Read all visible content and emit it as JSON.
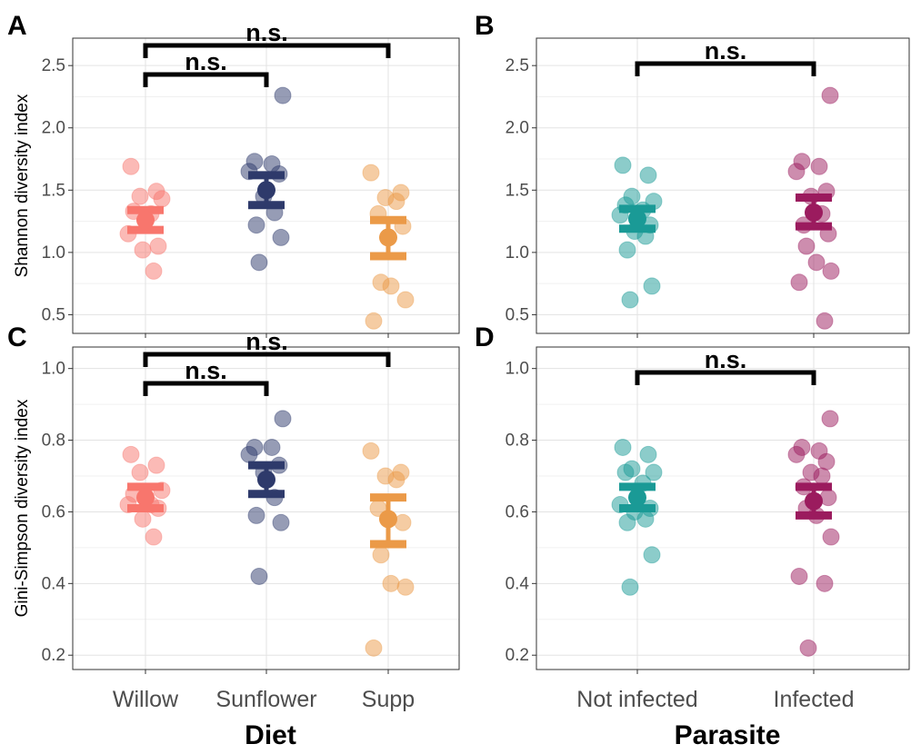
{
  "figure": {
    "panels": [
      "A",
      "B",
      "C",
      "D"
    ]
  },
  "chart_data": [
    {
      "panel": "A",
      "type": "scatter",
      "subtype": "jitter-with-mean-se",
      "categories": [
        "Willow",
        "Sunflower",
        "Supp"
      ],
      "ylabel": "Shannon diversity index",
      "xlabel": "Diet",
      "ylim": [
        0.35,
        2.72
      ],
      "yticks": [
        0.5,
        1.0,
        1.5,
        2.0,
        2.5
      ],
      "ytick_labels": [
        "0.5",
        "1.0",
        "1.5",
        "2.0",
        "2.5"
      ],
      "grid": true,
      "colors": [
        "#f8766d",
        "#2e3a6b",
        "#eb9a48"
      ],
      "series": [
        {
          "category": "Willow",
          "values": [
            1.69,
            1.49,
            1.45,
            1.43,
            1.33,
            1.31,
            1.15,
            1.05,
            1.02,
            0.85
          ],
          "mean": 1.26,
          "se": [
            1.18,
            1.34
          ]
        },
        {
          "category": "Sunflower",
          "values": [
            2.26,
            1.73,
            1.71,
            1.65,
            1.63,
            1.45,
            1.32,
            1.22,
            1.12,
            0.92
          ],
          "mean": 1.5,
          "se": [
            1.38,
            1.62
          ]
        },
        {
          "category": "Supp",
          "values": [
            1.64,
            1.48,
            1.44,
            1.41,
            1.31,
            1.21,
            0.76,
            0.73,
            0.62,
            0.45
          ],
          "mean": 1.12,
          "se": [
            0.97,
            1.26
          ]
        }
      ],
      "annotations": [
        {
          "from": "Willow",
          "to": "Sunflower",
          "label": "n.s."
        },
        {
          "from": "Willow",
          "to": "Supp",
          "label": "n.s."
        }
      ]
    },
    {
      "panel": "B",
      "type": "scatter",
      "subtype": "jitter-with-mean-se",
      "categories": [
        "Not infected",
        "Infected"
      ],
      "ylabel": "",
      "xlabel": "Parasite",
      "ylim": [
        0.35,
        2.72
      ],
      "yticks": [
        0.5,
        1.0,
        1.5,
        2.0,
        2.5
      ],
      "ytick_labels": [
        "0.5",
        "1.0",
        "1.5",
        "2.0",
        "2.5"
      ],
      "grid": true,
      "colors": [
        "#1a9a96",
        "#9b1b5e"
      ],
      "series": [
        {
          "category": "Not infected",
          "values": [
            1.7,
            1.62,
            1.45,
            1.41,
            1.38,
            1.34,
            1.3,
            1.22,
            1.17,
            1.13,
            1.02,
            0.73,
            0.62
          ],
          "mean": 1.27,
          "se": [
            1.19,
            1.35
          ]
        },
        {
          "category": "Infected",
          "values": [
            2.26,
            1.73,
            1.69,
            1.65,
            1.49,
            1.45,
            1.31,
            1.22,
            1.15,
            1.05,
            0.92,
            0.85,
            0.76,
            0.45
          ],
          "mean": 1.32,
          "se": [
            1.21,
            1.44
          ]
        }
      ],
      "annotations": [
        {
          "from": "Not infected",
          "to": "Infected",
          "label": "n.s."
        }
      ]
    },
    {
      "panel": "C",
      "type": "scatter",
      "subtype": "jitter-with-mean-se",
      "categories": [
        "Willow",
        "Sunflower",
        "Supp"
      ],
      "ylabel": "Gini-Simpson diversity index",
      "xlabel": "Diet",
      "ylim": [
        0.16,
        1.06
      ],
      "yticks": [
        0.2,
        0.4,
        0.6,
        0.8,
        1.0
      ],
      "ytick_labels": [
        "0.2",
        "0.4",
        "0.6",
        "0.8",
        "1.0"
      ],
      "grid": true,
      "colors": [
        "#f8766d",
        "#2e3a6b",
        "#eb9a48"
      ],
      "series": [
        {
          "category": "Willow",
          "values": [
            0.76,
            0.73,
            0.71,
            0.66,
            0.65,
            0.62,
            0.62,
            0.61,
            0.58,
            0.53
          ],
          "mean": 0.64,
          "se": [
            0.61,
            0.67
          ]
        },
        {
          "category": "Sunflower",
          "values": [
            0.86,
            0.78,
            0.78,
            0.76,
            0.73,
            0.71,
            0.64,
            0.59,
            0.57,
            0.42
          ],
          "mean": 0.69,
          "se": [
            0.65,
            0.73
          ]
        },
        {
          "category": "Supp",
          "values": [
            0.77,
            0.71,
            0.7,
            0.69,
            0.61,
            0.57,
            0.48,
            0.4,
            0.39,
            0.22
          ],
          "mean": 0.58,
          "se": [
            0.51,
            0.64
          ]
        }
      ],
      "annotations": [
        {
          "from": "Willow",
          "to": "Sunflower",
          "label": "n.s."
        },
        {
          "from": "Willow",
          "to": "Supp",
          "label": "n.s."
        }
      ]
    },
    {
      "panel": "D",
      "type": "scatter",
      "subtype": "jitter-with-mean-se",
      "categories": [
        "Not infected",
        "Infected"
      ],
      "ylabel": "",
      "xlabel": "Parasite",
      "ylim": [
        0.16,
        1.06
      ],
      "yticks": [
        0.2,
        0.4,
        0.6,
        0.8,
        1.0
      ],
      "ytick_labels": [
        "0.2",
        "0.4",
        "0.6",
        "0.8",
        "1.0"
      ],
      "grid": true,
      "colors": [
        "#1a9a96",
        "#9b1b5e"
      ],
      "series": [
        {
          "category": "Not infected",
          "values": [
            0.78,
            0.76,
            0.72,
            0.71,
            0.71,
            0.68,
            0.62,
            0.61,
            0.6,
            0.58,
            0.57,
            0.48,
            0.39
          ],
          "mean": 0.64,
          "se": [
            0.61,
            0.67
          ]
        },
        {
          "category": "Infected",
          "values": [
            0.86,
            0.78,
            0.77,
            0.76,
            0.74,
            0.71,
            0.7,
            0.67,
            0.64,
            0.61,
            0.59,
            0.53,
            0.42,
            0.4,
            0.22
          ],
          "mean": 0.63,
          "se": [
            0.59,
            0.67
          ]
        }
      ],
      "annotations": [
        {
          "from": "Not infected",
          "to": "Infected",
          "label": "n.s."
        }
      ]
    }
  ]
}
